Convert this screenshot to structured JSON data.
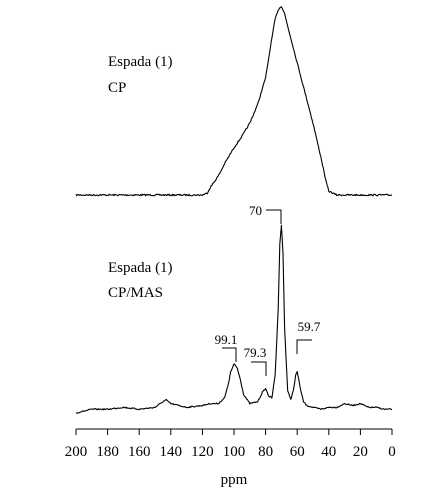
{
  "chart_data": [
    {
      "type": "line",
      "name_label": "Espada (1)",
      "technique_label": "CP",
      "x_unit": "ppm",
      "xlim": [
        200,
        0
      ],
      "x": [
        200,
        190,
        180,
        170,
        160,
        150,
        140,
        130,
        120,
        117,
        115,
        110,
        105,
        100,
        95,
        90,
        85,
        80,
        77,
        74,
        72,
        70,
        68,
        65,
        60,
        55,
        50,
        45,
        42,
        40,
        35,
        30,
        20,
        10,
        0
      ],
      "y": [
        0.0,
        0.0,
        0.0,
        0.0,
        0.0,
        0.0,
        0.0,
        0.0,
        0.0,
        0.01,
        0.04,
        0.1,
        0.18,
        0.25,
        0.31,
        0.38,
        0.48,
        0.62,
        0.78,
        0.93,
        0.98,
        1.0,
        0.96,
        0.86,
        0.7,
        0.54,
        0.38,
        0.2,
        0.08,
        0.02,
        0.0,
        0.0,
        0.0,
        0.0,
        0.0
      ]
    },
    {
      "type": "line",
      "name_label": "Espada (1)",
      "technique_label": "CP/MAS",
      "x_unit": "ppm",
      "xlim": [
        200,
        0
      ],
      "annotations": [
        "70",
        "99.1",
        "79.3",
        "59.7"
      ],
      "x": [
        200,
        190,
        180,
        170,
        160,
        150,
        145,
        143,
        140,
        130,
        120,
        115,
        110,
        106,
        104,
        102,
        100,
        98,
        96,
        94,
        90,
        85,
        82,
        80,
        78,
        76,
        74,
        72,
        71,
        70,
        69,
        68,
        66,
        64,
        62,
        61,
        60,
        58,
        56,
        54,
        50,
        45,
        40,
        35,
        30,
        25,
        20,
        15,
        10,
        5,
        0
      ],
      "y": [
        0.0,
        0.02,
        0.02,
        0.03,
        0.02,
        0.03,
        0.06,
        0.07,
        0.05,
        0.03,
        0.04,
        0.05,
        0.05,
        0.08,
        0.14,
        0.22,
        0.26,
        0.24,
        0.18,
        0.1,
        0.05,
        0.06,
        0.11,
        0.13,
        0.09,
        0.08,
        0.2,
        0.55,
        0.9,
        1.0,
        0.85,
        0.45,
        0.12,
        0.07,
        0.14,
        0.2,
        0.22,
        0.13,
        0.06,
        0.04,
        0.03,
        0.02,
        0.03,
        0.03,
        0.05,
        0.04,
        0.05,
        0.03,
        0.03,
        0.02,
        0.02
      ]
    }
  ],
  "axis": {
    "ticks": [
      200,
      180,
      160,
      140,
      120,
      100,
      80,
      60,
      40,
      20,
      0
    ],
    "tick_labels": [
      "200",
      "180",
      "160",
      "140",
      "120",
      "100",
      "80",
      "60",
      "40",
      "20",
      "0"
    ],
    "xlabel": "ppm"
  }
}
